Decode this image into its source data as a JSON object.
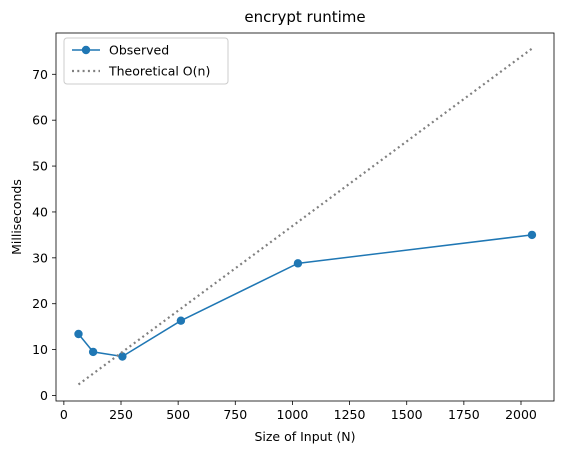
{
  "chart_data": {
    "type": "line",
    "title": "encrypt runtime",
    "xlabel": "Size of Input (N)",
    "ylabel": "Milliseconds",
    "xlim": [
      -34.4,
      2144.4
    ],
    "ylim": [
      -1.2,
      79.0
    ],
    "x_ticks": [
      0,
      250,
      500,
      750,
      1000,
      1250,
      1500,
      1750,
      2000
    ],
    "y_ticks": [
      0,
      10,
      20,
      30,
      40,
      50,
      60,
      70
    ],
    "grid": false,
    "legend_position": "top-left",
    "series": [
      {
        "name": "Observed",
        "style": "solid-marker",
        "color": "#1f77b4",
        "x": [
          64,
          128,
          256,
          512,
          1024,
          2048
        ],
        "y": [
          13.4,
          9.5,
          8.5,
          16.3,
          28.8,
          35.0
        ]
      },
      {
        "name": "Theoretical O(n)",
        "style": "dotted",
        "color": "#808080",
        "x": [
          64,
          2048
        ],
        "y": [
          2.4,
          75.6
        ]
      }
    ]
  }
}
